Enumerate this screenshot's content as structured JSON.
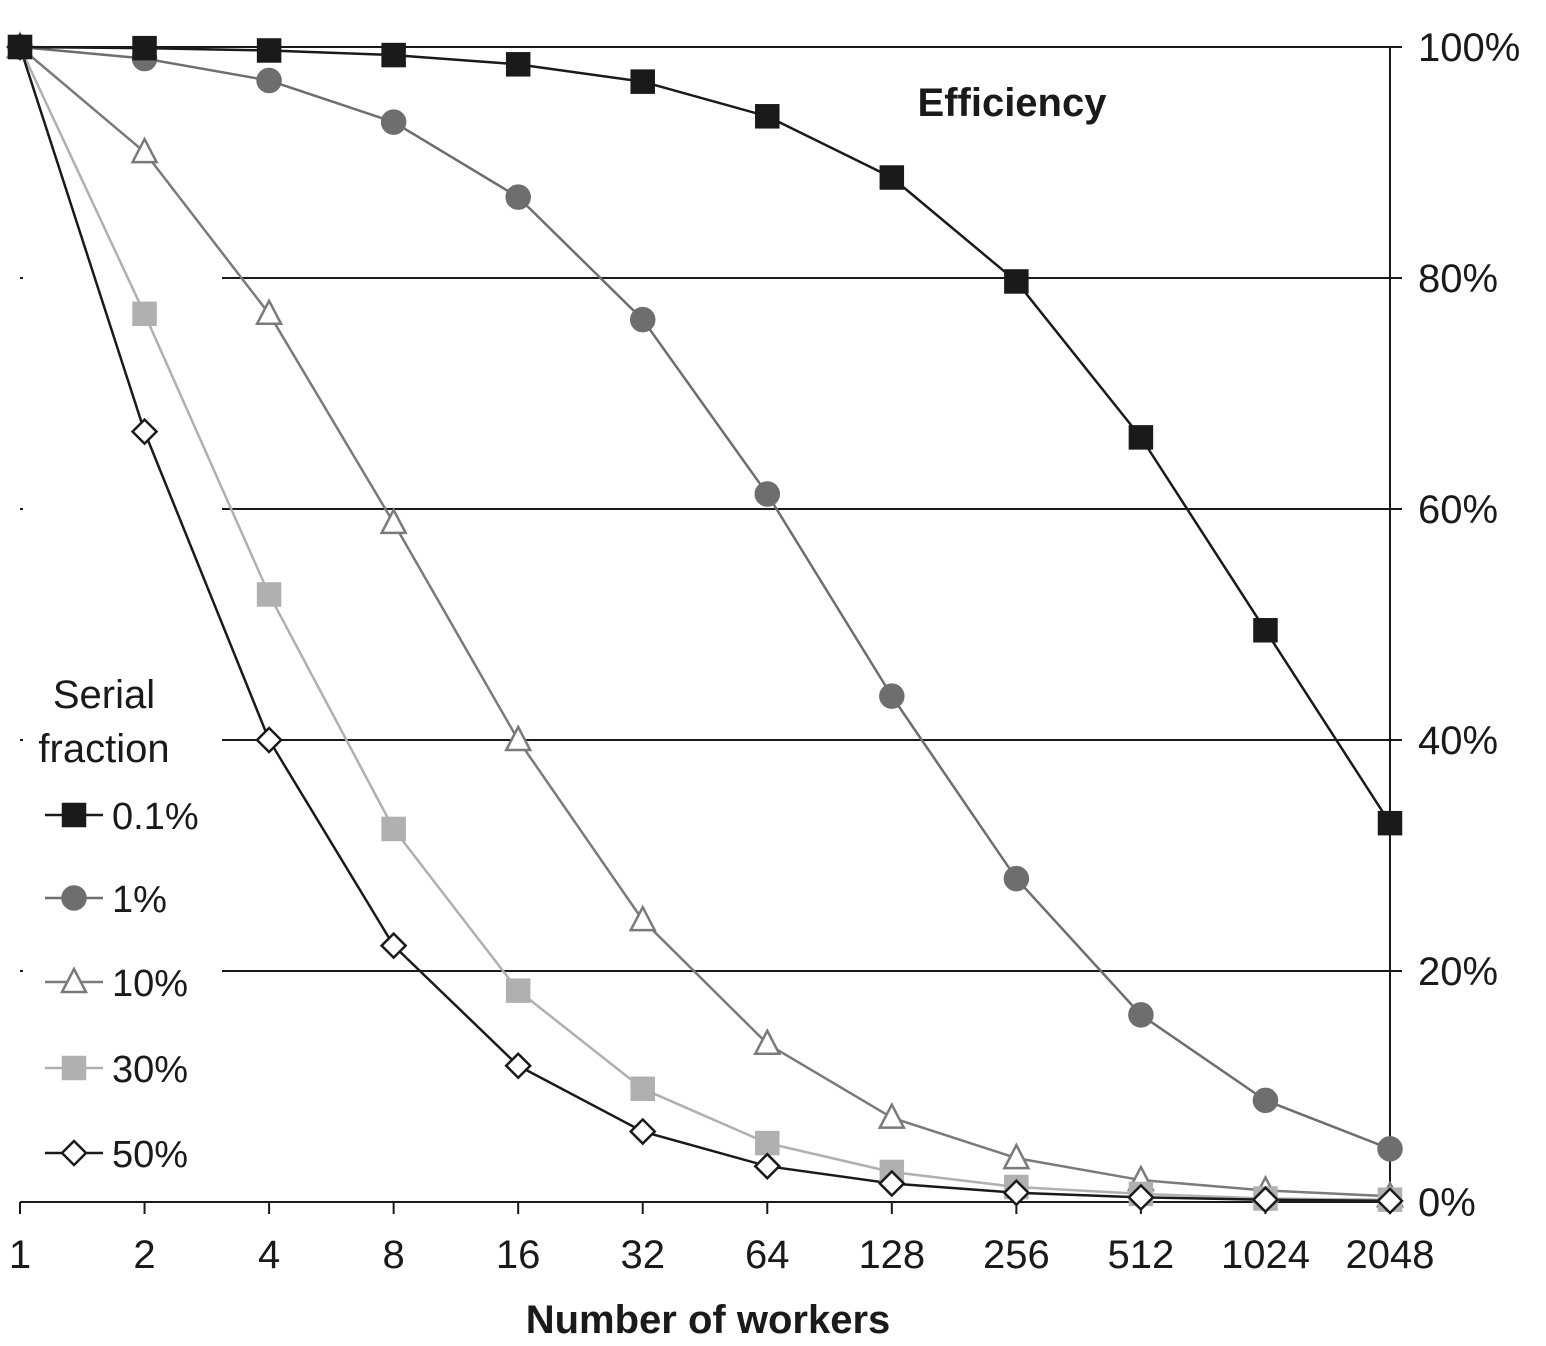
{
  "chart_data": {
    "type": "line",
    "title": "Efficiency",
    "xlabel": "Number of workers",
    "ylabel": "",
    "x_scale": "log2",
    "categories": [
      "1",
      "2",
      "4",
      "8",
      "16",
      "32",
      "64",
      "128",
      "256",
      "512",
      "1024",
      "2048"
    ],
    "y_ticks": [
      "0%",
      "20%",
      "40%",
      "60%",
      "80%",
      "100%"
    ],
    "ylim": [
      0,
      1
    ],
    "y_axis_side": "right",
    "grid": "horizontal",
    "legend_title": "Serial fraction",
    "legend_position": "left",
    "series": [
      {
        "name": "0.1%",
        "marker": "square",
        "color": "#1a1a1a",
        "fill": "#1a1a1a",
        "values": [
          1.0,
          0.999,
          0.997,
          0.993,
          0.985,
          0.97,
          0.94,
          0.887,
          0.797,
          0.662,
          0.495,
          0.328
        ]
      },
      {
        "name": "1%",
        "marker": "circle",
        "color": "#6e6e6e",
        "fill": "#6e6e6e",
        "values": [
          1.0,
          0.99,
          0.971,
          0.935,
          0.87,
          0.764,
          0.613,
          0.438,
          0.28,
          0.162,
          0.088,
          0.046
        ]
      },
      {
        "name": "10%",
        "marker": "triangle",
        "color": "#7a7a7a",
        "fill": "#ffffff",
        "values": [
          1.0,
          0.909,
          0.769,
          0.588,
          0.4,
          0.244,
          0.137,
          0.073,
          0.038,
          0.019,
          0.01,
          0.005
        ]
      },
      {
        "name": "30%",
        "marker": "square",
        "color": "#b0b0b0",
        "fill": "#b0b0b0",
        "values": [
          1.0,
          0.769,
          0.526,
          0.323,
          0.183,
          0.098,
          0.051,
          0.026,
          0.013,
          0.007,
          0.003,
          0.002
        ]
      },
      {
        "name": "50%",
        "marker": "diamond",
        "color": "#1a1a1a",
        "fill": "#ffffff",
        "values": [
          1.0,
          0.667,
          0.4,
          0.222,
          0.118,
          0.061,
          0.031,
          0.016,
          0.008,
          0.004,
          0.002,
          0.001
        ]
      }
    ]
  }
}
